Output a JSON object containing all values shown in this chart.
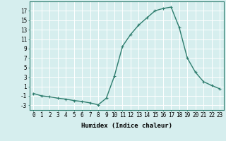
{
  "x": [
    0,
    1,
    2,
    3,
    4,
    5,
    6,
    7,
    8,
    9,
    10,
    11,
    12,
    13,
    14,
    15,
    16,
    17,
    18,
    19,
    20,
    21,
    22,
    23
  ],
  "y": [
    -0.5,
    -1.0,
    -1.2,
    -1.5,
    -1.7,
    -2.0,
    -2.2,
    -2.5,
    -2.9,
    -1.5,
    3.2,
    9.5,
    12.0,
    14.0,
    15.5,
    17.0,
    17.5,
    17.8,
    13.5,
    7.0,
    4.0,
    2.0,
    1.2,
    0.5
  ],
  "xlabel": "Humidex (Indice chaleur)",
  "line_color": "#2e7d6e",
  "marker": "+",
  "bg_color": "#d6eeee",
  "grid_color": "#ffffff",
  "ylim": [
    -4,
    19
  ],
  "xlim": [
    -0.5,
    23.5
  ],
  "yticks": [
    -3,
    -1,
    1,
    3,
    5,
    7,
    9,
    11,
    13,
    15,
    17
  ],
  "xticks": [
    0,
    1,
    2,
    3,
    4,
    5,
    6,
    7,
    8,
    9,
    10,
    11,
    12,
    13,
    14,
    15,
    16,
    17,
    18,
    19,
    20,
    21,
    22,
    23
  ],
  "xlabel_fontsize": 6.5,
  "tick_fontsize": 5.5,
  "marker_size": 3,
  "line_width": 1.0
}
